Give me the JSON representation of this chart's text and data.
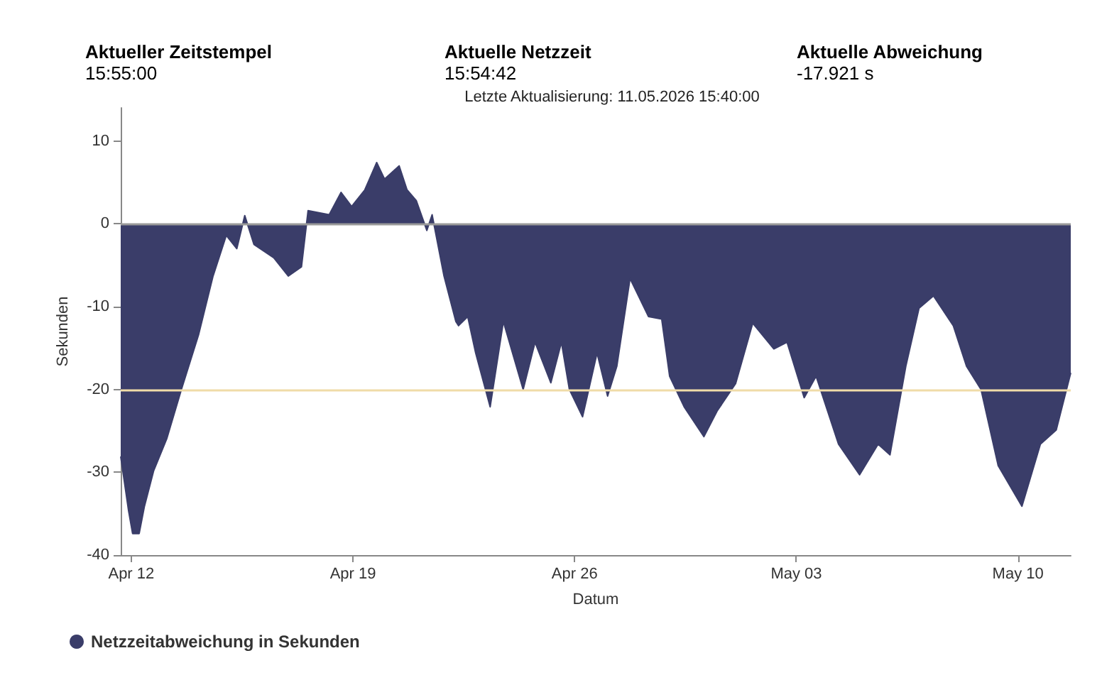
{
  "chart_data": {
    "type": "area",
    "subtitle": "Letzte Aktualisierung: 11.05.2026 15:40:00",
    "annotations": [
      "Aktueller Zeitstempel",
      "15:55:00",
      "Aktuelle Netzzeit",
      "15:54:42",
      "Aktuelle Abweichung",
      "-17.921 s"
    ],
    "xlabel": "Datum",
    "ylabel": "Sekunden",
    "xlim": [
      "2026-04-11T16:00",
      "2026-05-11T16:00"
    ],
    "xticks": [
      {
        "value": "2026-04-12",
        "label": "Apr 12"
      },
      {
        "value": "2026-04-19",
        "label": "Apr 19"
      },
      {
        "value": "2026-04-26",
        "label": "Apr 26"
      },
      {
        "value": "2026-05-03",
        "label": "May 03"
      },
      {
        "value": "2026-05-10",
        "label": "May 10"
      }
    ],
    "ylim": [
      -40,
      14
    ],
    "yticks": [
      -40,
      -30,
      -20,
      -10,
      0,
      10
    ],
    "grid": false,
    "legend": "bottom left",
    "marker": "none",
    "ref_lines": [
      {
        "axis": "y",
        "value": 0,
        "color": "#9a9a9a"
      },
      {
        "axis": "y",
        "value": -20,
        "color": "#f0dca8"
      }
    ],
    "series": [
      {
        "name": "Netzzeitabweichung in Sekunden",
        "color": "#3a3d69",
        "x": [
          "2026-04-11T16:00",
          "2026-04-11T22:00",
          "2026-04-12T01:00",
          "2026-04-12T06:00",
          "2026-04-12T10:00",
          "2026-04-12T17:00",
          "2026-04-13T03:00",
          "2026-04-13T14:00",
          "2026-04-14T03:00",
          "2026-04-14T14:00",
          "2026-04-15T00:00",
          "2026-04-15T08:00",
          "2026-04-15T14:00",
          "2026-04-15T21:00",
          "2026-04-16T12:00",
          "2026-04-16T23:00",
          "2026-04-17T09:00",
          "2026-04-17T14:00",
          "2026-04-18T06:00",
          "2026-04-18T15:00",
          "2026-04-18T23:00",
          "2026-04-19T09:00",
          "2026-04-19T18:00",
          "2026-04-20T00:00",
          "2026-04-20T11:00",
          "2026-04-20T17:00",
          "2026-04-21T00:00",
          "2026-04-21T08:00",
          "2026-04-21T12:00",
          "2026-04-21T21:00",
          "2026-04-22T06:00",
          "2026-04-22T08:00",
          "2026-04-22T15:00",
          "2026-04-22T21:00",
          "2026-04-23T08:00",
          "2026-04-23T18:00",
          "2026-04-24T09:00",
          "2026-04-24T18:00",
          "2026-04-25T06:00",
          "2026-04-25T14:00",
          "2026-04-25T20:00",
          "2026-04-26T06:00",
          "2026-04-26T17:00",
          "2026-04-27T01:00",
          "2026-04-27T08:00",
          "2026-04-27T18:00",
          "2026-04-28T08:00",
          "2026-04-28T18:00",
          "2026-04-29T00:00",
          "2026-04-29T11:00",
          "2026-04-30T02:00",
          "2026-04-30T12:00",
          "2026-05-01T02:00",
          "2026-05-01T15:00",
          "2026-05-02T07:00",
          "2026-05-02T17:00",
          "2026-05-03T06:00",
          "2026-05-03T15:00",
          "2026-05-04T08:00",
          "2026-05-05T00:00",
          "2026-05-05T14:00",
          "2026-05-05T23:00",
          "2026-05-06T11:00",
          "2026-05-06T21:00",
          "2026-05-07T08:00",
          "2026-05-07T23:00",
          "2026-05-08T09:00",
          "2026-05-08T20:00",
          "2026-05-09T09:00",
          "2026-05-10T03:00",
          "2026-05-10T17:00",
          "2026-05-11T05:00",
          "2026-05-11T16:00"
        ],
        "values": [
          -28.1,
          -34.7,
          -37.4,
          -37.4,
          -34.1,
          -29.8,
          -25.9,
          -20,
          -13.4,
          -6.3,
          -1.4,
          -3.0,
          1.0,
          -2.5,
          -4.1,
          -6.3,
          -5.2,
          1.6,
          1.1,
          3.8,
          2.1,
          4.1,
          7.4,
          5.4,
          7.0,
          4.1,
          2.8,
          -0.8,
          1.1,
          -6.3,
          -11.8,
          -12.3,
          -11.2,
          -15.6,
          -22.1,
          -11.8,
          -20,
          -14.3,
          -19.2,
          -14.3,
          -20,
          -23.3,
          -15.6,
          -20.8,
          -17.2,
          -6.6,
          -11.2,
          -11.5,
          -18.4,
          -22.1,
          -25.7,
          -22.6,
          -19.3,
          -12.0,
          -15.1,
          -14.3,
          -21.0,
          -18.4,
          -26.6,
          -30.3,
          -26.6,
          -27.9,
          -17.2,
          -10.2,
          -8.7,
          -12.3,
          -17.2,
          -20,
          -29.2,
          -34.1,
          -26.6,
          -24.9,
          -18.0
        ]
      }
    ]
  }
}
